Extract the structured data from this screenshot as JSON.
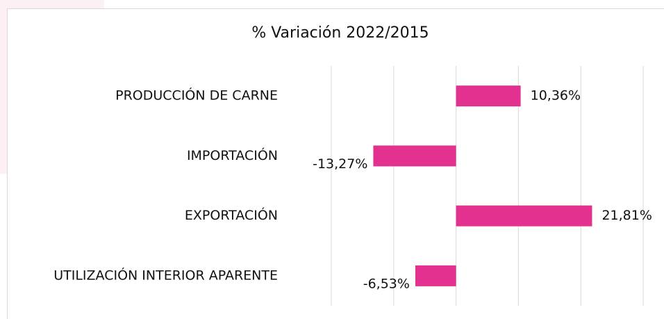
{
  "chart_data": {
    "type": "bar",
    "orientation": "horizontal",
    "title": "% Variación 2022/2015",
    "categories": [
      "PRODUCCIÓN DE CARNE",
      "IMPORTACIÓN",
      "EXPORTACIÓN",
      "UTILIZACIÓN INTERIOR APARENTE"
    ],
    "values": [
      10.36,
      -13.27,
      21.81,
      -6.53
    ],
    "value_labels": [
      "10,36%",
      "-13,27%",
      "21,81%",
      "-6,53%"
    ],
    "color": "#e3318f",
    "xlim": [
      -20,
      30
    ],
    "xticks": [
      -20,
      -10,
      0,
      10,
      20,
      30
    ],
    "grid": true
  }
}
